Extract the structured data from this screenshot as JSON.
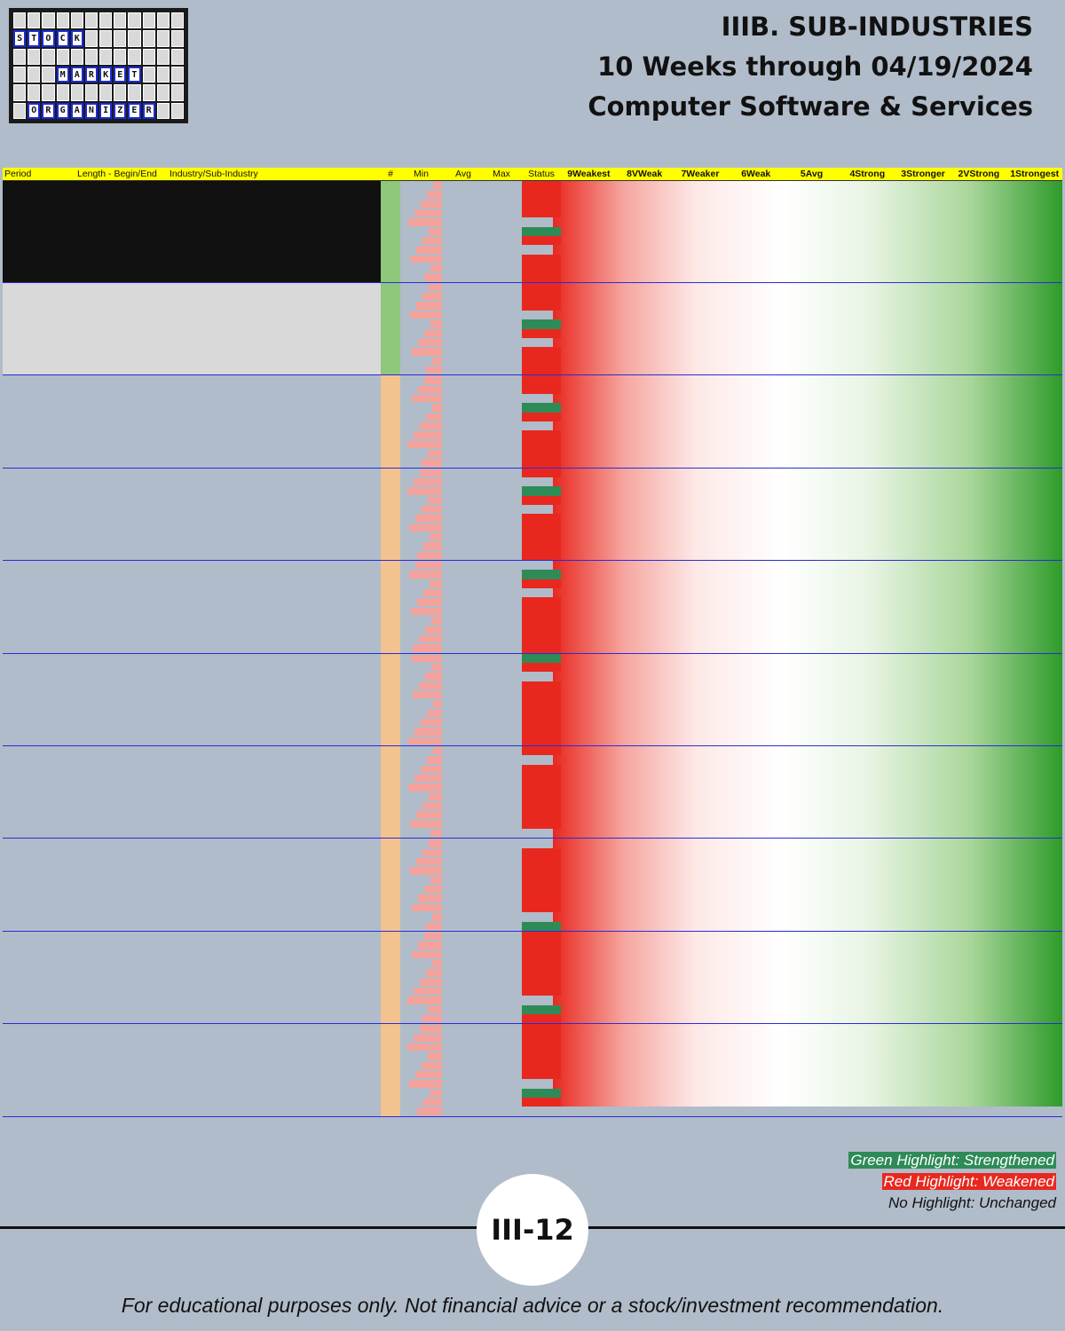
{
  "logo": {
    "word1": "STOCK",
    "word2": "MARKET",
    "word3": "ORGANIZER"
  },
  "title": {
    "line1": "IIIB. SUB-INDUSTRIES",
    "line2": "10 Weeks through 04/19/2024",
    "line3": "Computer Software & Services"
  },
  "table": {
    "headers": [
      "Period",
      "Length - Begin/End",
      "Industry/Sub-Industry",
      "#",
      "Min",
      "Avg",
      "Max",
      "Status"
    ],
    "levels": [
      "9Weakest",
      "8VWeak",
      "7Weaker",
      "6Weak",
      "5Avg",
      "4Strong",
      "3Stronger",
      "2VStrong",
      "1Strongest"
    ]
  },
  "legend": {
    "green": "Green Highlight: Strengthened",
    "red": "Red Highlight: Weakened",
    "none": "No Highlight: Unchanged"
  },
  "page_number": "III-12",
  "footer": "For educational purposes only. Not financial advice or a stock/investment recommendation.",
  "colors": {
    "weakened": "#e8281f",
    "strengthened": "#2e8b57",
    "header": "#ffff00"
  }
}
